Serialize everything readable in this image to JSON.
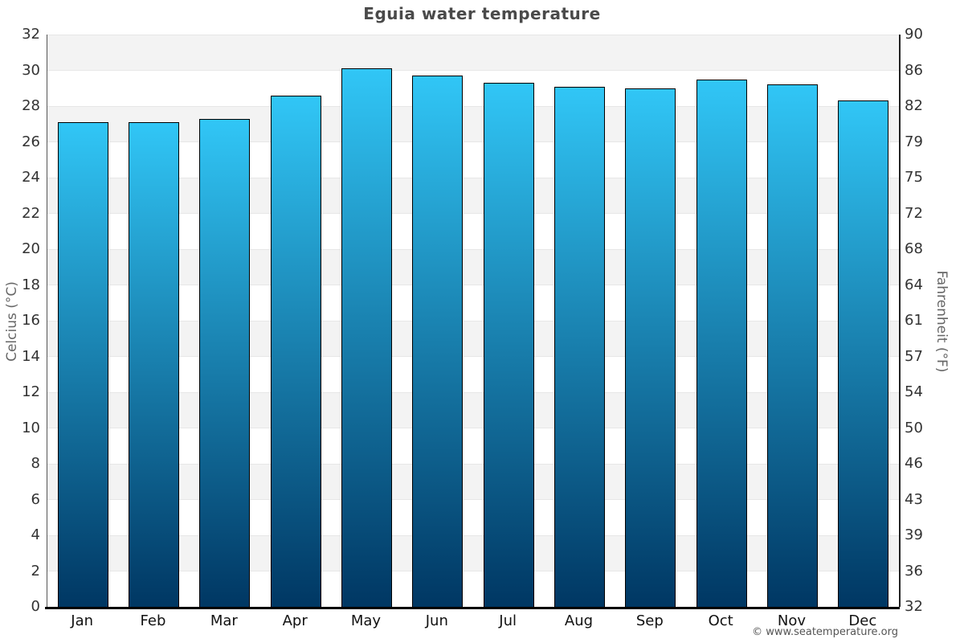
{
  "title": "Eguia water temperature",
  "watermark": "© www.seatemperature.org",
  "chart_data": {
    "type": "bar",
    "title": "Eguia water temperature",
    "categories": [
      "Jan",
      "Feb",
      "Mar",
      "Apr",
      "May",
      "Jun",
      "Jul",
      "Aug",
      "Sep",
      "Oct",
      "Nov",
      "Dec"
    ],
    "values": [
      27.1,
      27.1,
      27.3,
      28.6,
      30.1,
      29.7,
      29.3,
      29.1,
      29.0,
      29.5,
      29.2,
      28.3
    ],
    "unit": "°C",
    "xlabel": "",
    "ylabel_left": "Celcius (°C)",
    "ylabel_right": "Fahrenheit (°F)",
    "ylim": [
      0,
      32
    ],
    "yticks_celsius": [
      0,
      2,
      4,
      6,
      8,
      10,
      12,
      14,
      16,
      18,
      20,
      22,
      24,
      26,
      28,
      30,
      32
    ],
    "yticks_fahrenheit": [
      32,
      36,
      39,
      43,
      46,
      50,
      54,
      57,
      61,
      64,
      68,
      72,
      75,
      79,
      82,
      86,
      90
    ],
    "legend": "none",
    "grid": "alternating horizontal bands every 2°C",
    "colors": {
      "bar_gradient_top": "#31c6f6",
      "bar_gradient_bottom": "#003763",
      "bar_border": "#000000",
      "band_gray": "#f3f3f3",
      "band_white": "#ffffff",
      "title_text": "#4a4a4a",
      "tick_text": "#333333",
      "axis_title_text": "#666666",
      "watermark_text": "#555555"
    }
  }
}
